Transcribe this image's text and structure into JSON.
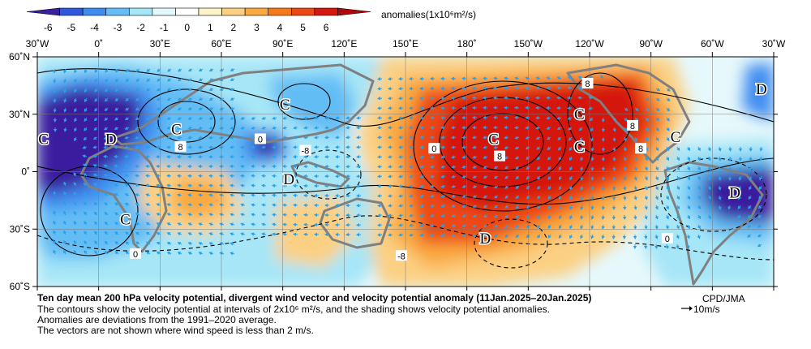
{
  "colorbar": {
    "ticks": [
      "-6",
      "-5",
      "-4",
      "-3",
      "-2",
      "-1",
      "0",
      "1",
      "2",
      "3",
      "4",
      "5",
      "6"
    ],
    "label": "anomalies(1x10⁶m²/s)",
    "colors": [
      "#3a1f9e",
      "#2f58dc",
      "#3f8cf0",
      "#64bdf5",
      "#a6e6f7",
      "#e3f8fb",
      "#ffffff",
      "#fdf2c8",
      "#fbd083",
      "#f9a93f",
      "#f77a1a",
      "#ec4816",
      "#d4170f",
      "#b0070a"
    ]
  },
  "axes": {
    "top_ticks": [
      "30˚W",
      "0˚",
      "30˚E",
      "60˚E",
      "90˚E",
      "120˚E",
      "150˚E",
      "180˚",
      "150˚W",
      "120˚W",
      "90˚W",
      "60˚W",
      "30˚W"
    ],
    "left_ticks": [
      "60˚N",
      "30˚N",
      "0˚",
      "30˚S",
      "60˚S"
    ]
  },
  "map_labels": {
    "centers": [
      {
        "text": "C",
        "lon": -27,
        "lat": 17
      },
      {
        "text": "D",
        "lon": 6,
        "lat": 17
      },
      {
        "text": "C",
        "lon": 38,
        "lat": 22
      },
      {
        "text": "C",
        "lon": 91,
        "lat": 35
      },
      {
        "text": "D",
        "lon": 93,
        "lat": -4
      },
      {
        "text": "C",
        "lon": 13,
        "lat": -25
      },
      {
        "text": "C",
        "lon": 193,
        "lat": 17
      },
      {
        "text": "C",
        "lon": 235,
        "lat": 30
      },
      {
        "text": "C",
        "lon": 235,
        "lat": 13
      },
      {
        "text": "C",
        "lon": 282,
        "lat": 18
      },
      {
        "text": "D",
        "lon": 324,
        "lat": 43
      },
      {
        "text": "D",
        "lon": 311,
        "lat": -11
      },
      {
        "text": "D",
        "lon": 189,
        "lat": -35
      }
    ],
    "contour_values": [
      {
        "text": "8",
        "lon": 40,
        "lat": 13
      },
      {
        "text": "0",
        "lon": 79,
        "lat": 17
      },
      {
        "text": "-8",
        "lon": 101,
        "lat": 11
      },
      {
        "text": "0",
        "lon": 164,
        "lat": 12
      },
      {
        "text": "8",
        "lon": 196,
        "lat": 8
      },
      {
        "text": "8",
        "lon": 239,
        "lat": 46
      },
      {
        "text": "8",
        "lon": 261,
        "lat": 24
      },
      {
        "text": "8",
        "lon": 265,
        "lat": 12
      },
      {
        "text": "0",
        "lon": 18,
        "lat": -43
      },
      {
        "text": "-8",
        "lon": 148,
        "lat": -44
      },
      {
        "text": "0",
        "lon": 278,
        "lat": -35
      }
    ]
  },
  "captions": {
    "title": "Ten day mean 200 hPa velocity potential, divergent wind vector and velocity potential anomaly (11Jan.2025–20Jan.2025)",
    "line1": "The contours show the velocity potential at intervals of 2x10⁶ m²/s, and the shading shows velocity potential anomalies.",
    "line2": "Anomalies are deviations from the 1991–2020 average.",
    "line3": "The vectors are not shown where wind speed is less than 2 m/s."
  },
  "credit": "CPD/JMA",
  "reference_vector": "10m/s"
}
